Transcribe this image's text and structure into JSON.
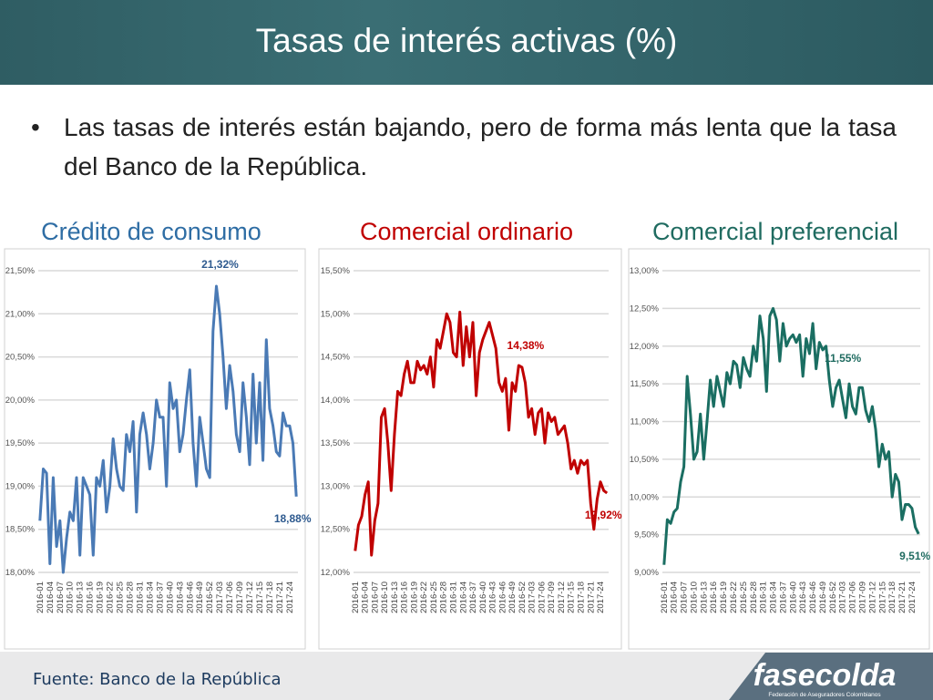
{
  "header": {
    "title": "Tasas de interés activas (%)"
  },
  "bullet": "Las tasas de interés están bajando, pero de forma más lenta que la tasa del Banco de la República.",
  "source": "Fuente: Banco de la República",
  "logo": {
    "name": "fasecolda",
    "tagline": "Federación de Aseguradores Colombianos"
  },
  "chart_data": [
    {
      "type": "line",
      "title": "Crédito de consumo",
      "title_color": "#2e6da4",
      "categories": [
        "2016-01",
        null,
        null,
        "2016-04",
        null,
        null,
        "2016-07",
        null,
        null,
        "2016-10",
        null,
        null,
        "2016-13",
        null,
        null,
        "2016-16",
        null,
        null,
        "2016-19",
        null,
        null,
        "2016-22",
        null,
        null,
        "2016-25",
        null,
        null,
        "2016-28",
        null,
        null,
        "2016-31",
        null,
        null,
        "2016-34",
        null,
        null,
        "2016-37",
        null,
        null,
        "2016-40",
        null,
        null,
        "2016-43",
        null,
        null,
        "2016-46",
        null,
        null,
        "2016-49",
        null,
        null,
        "2016-52",
        null,
        null,
        "2017-03",
        null,
        null,
        "2017-06",
        null,
        null,
        "2017-09",
        null,
        null,
        "2017-12",
        null,
        null,
        "2017-15",
        null,
        null,
        "2017-18",
        null,
        null,
        "2017-21",
        null,
        null,
        "2017-24",
        null,
        null
      ],
      "series": [
        {
          "color": "#4a7ab5",
          "values": [
            18.6,
            19.2,
            19.15,
            18.1,
            19.1,
            18.3,
            18.6,
            18.0,
            18.4,
            18.7,
            18.6,
            19.1,
            18.2,
            19.1,
            19.0,
            18.9,
            18.2,
            19.1,
            19.0,
            19.3,
            18.7,
            19.0,
            19.55,
            19.2,
            19.0,
            18.95,
            19.6,
            19.4,
            19.75,
            18.7,
            19.6,
            19.85,
            19.6,
            19.2,
            19.5,
            20.0,
            19.8,
            19.8,
            19.0,
            20.2,
            19.9,
            20.0,
            19.4,
            19.6,
            20.0,
            20.35,
            19.5,
            19.0,
            19.8,
            19.5,
            19.2,
            19.1,
            20.8,
            21.32,
            21.0,
            20.5,
            19.9,
            20.4,
            20.1,
            19.6,
            19.4,
            20.2,
            19.8,
            19.25,
            20.3,
            19.5,
            20.2,
            19.3,
            20.7,
            19.9,
            19.7,
            19.4,
            19.35,
            19.85,
            19.7,
            19.7,
            19.5,
            18.88
          ],
          "value_labels": [
            null,
            null,
            null,
            null,
            null,
            null,
            null,
            null,
            null,
            null,
            null,
            null,
            null,
            null,
            null,
            null,
            null,
            null,
            null,
            null,
            null,
            null,
            null,
            null,
            null,
            null,
            null,
            null,
            null,
            null,
            null,
            null,
            null,
            null,
            null,
            null,
            null,
            null,
            null,
            null,
            null,
            null,
            null,
            null,
            null,
            null,
            null,
            null,
            null,
            null,
            null,
            null,
            null,
            "21,32%",
            null,
            null,
            null,
            null,
            null,
            null,
            null,
            null,
            null,
            null,
            null,
            null,
            null,
            null,
            null,
            null,
            null,
            null,
            null,
            null,
            null,
            null,
            null,
            "18,88%"
          ],
          "label_color": "#2e5a8f"
        }
      ],
      "ylim": [
        18.0,
        21.5
      ],
      "yticks": [
        {
          "value": 18.0,
          "label": "18,00%"
        },
        {
          "value": 18.5,
          "label": "18,50%"
        },
        {
          "value": 19.0,
          "label": "19,00%"
        },
        {
          "value": 19.5,
          "label": "19,50%"
        },
        {
          "value": 20.0,
          "label": "20,00%"
        },
        {
          "value": 20.5,
          "label": "20,50%"
        },
        {
          "value": 21.0,
          "label": "21,00%"
        },
        {
          "value": 21.5,
          "label": "21,50%"
        }
      ],
      "grid": true
    },
    {
      "type": "line",
      "title": "Comercial ordinario",
      "title_color": "#c00000",
      "categories": [
        "2016-01",
        null,
        null,
        "2016-04",
        null,
        null,
        "2016-07",
        null,
        null,
        "2016-10",
        null,
        null,
        "2016-13",
        null,
        null,
        "2016-16",
        null,
        null,
        "2016-19",
        null,
        null,
        "2016-22",
        null,
        null,
        "2016-25",
        null,
        null,
        "2016-28",
        null,
        null,
        "2016-31",
        null,
        null,
        "2016-34",
        null,
        null,
        "2016-37",
        null,
        null,
        "2016-40",
        null,
        null,
        "2016-43",
        null,
        null,
        "2016-46",
        null,
        null,
        "2016-49",
        null,
        null,
        "2016-52",
        null,
        null,
        "2017-03",
        null,
        null,
        "2017-06",
        null,
        null,
        "2017-09",
        null,
        null,
        "2017-12",
        null,
        null,
        "2017-15",
        null,
        null,
        "2017-18",
        null,
        null,
        "2017-21",
        null,
        null,
        "2017-24",
        null,
        null
      ],
      "series": [
        {
          "color": "#c00000",
          "values": [
            12.25,
            12.55,
            12.65,
            12.9,
            13.05,
            12.2,
            12.6,
            12.8,
            13.8,
            13.9,
            13.5,
            12.95,
            13.6,
            14.1,
            14.05,
            14.3,
            14.45,
            14.2,
            14.2,
            14.45,
            14.35,
            14.4,
            14.3,
            14.5,
            14.15,
            14.7,
            14.6,
            14.8,
            15.0,
            14.9,
            14.55,
            14.5,
            15.02,
            14.4,
            14.85,
            14.5,
            14.9,
            14.05,
            14.55,
            14.7,
            14.8,
            14.9,
            14.75,
            14.6,
            14.2,
            14.1,
            14.25,
            13.65,
            14.2,
            14.1,
            14.4,
            14.38,
            14.2,
            13.8,
            13.9,
            13.6,
            13.85,
            13.9,
            13.5,
            13.85,
            13.75,
            13.8,
            13.6,
            13.65,
            13.7,
            13.5,
            13.2,
            13.3,
            13.15,
            13.3,
            13.25,
            13.3,
            12.8,
            12.5,
            12.85,
            13.05,
            12.95,
            12.92
          ],
          "value_labels": [
            null,
            null,
            null,
            null,
            null,
            null,
            null,
            null,
            null,
            null,
            null,
            null,
            null,
            null,
            null,
            null,
            null,
            null,
            null,
            null,
            null,
            null,
            null,
            null,
            null,
            null,
            null,
            null,
            null,
            null,
            null,
            null,
            null,
            null,
            null,
            null,
            null,
            null,
            null,
            null,
            null,
            null,
            null,
            null,
            null,
            null,
            null,
            null,
            null,
            null,
            null,
            "14,38%",
            null,
            null,
            null,
            null,
            null,
            null,
            null,
            null,
            null,
            null,
            null,
            null,
            null,
            null,
            null,
            null,
            null,
            null,
            null,
            null,
            null,
            null,
            null,
            null,
            null,
            "12,92%"
          ],
          "label_color": "#c00000"
        }
      ],
      "ylim": [
        12.0,
        15.5
      ],
      "yticks": [
        {
          "value": 12.0,
          "label": "12,00%"
        },
        {
          "value": 12.5,
          "label": "12,50%"
        },
        {
          "value": 13.0,
          "label": "13,00%"
        },
        {
          "value": 13.5,
          "label": "13,50%"
        },
        {
          "value": 14.0,
          "label": "14,00%"
        },
        {
          "value": 14.5,
          "label": "14,50%"
        },
        {
          "value": 15.0,
          "label": "15,00%"
        },
        {
          "value": 15.5,
          "label": "15,50%"
        }
      ],
      "grid": true
    },
    {
      "type": "line",
      "title": "Comercial preferencial",
      "title_color": "#1f6b60",
      "categories": [
        "2016-01",
        null,
        null,
        "2016-04",
        null,
        null,
        "2016-07",
        null,
        null,
        "2016-10",
        null,
        null,
        "2016-13",
        null,
        null,
        "2016-16",
        null,
        null,
        "2016-19",
        null,
        null,
        "2016-22",
        null,
        null,
        "2016-25",
        null,
        null,
        "2016-28",
        null,
        null,
        "2016-31",
        null,
        null,
        "2016-34",
        null,
        null,
        "2016-37",
        null,
        null,
        "2016-40",
        null,
        null,
        "2016-43",
        null,
        null,
        "2016-46",
        null,
        null,
        "2016-49",
        null,
        null,
        "2016-52",
        null,
        null,
        "2017-03",
        null,
        null,
        "2017-06",
        null,
        null,
        "2017-09",
        null,
        null,
        "2017-12",
        null,
        null,
        "2017-15",
        null,
        null,
        "2017-18",
        null,
        null,
        "2017-21",
        null,
        null,
        "2017-24",
        null,
        null
      ],
      "series": [
        {
          "color": "#1a6e62",
          "values": [
            9.1,
            9.7,
            9.65,
            9.8,
            9.85,
            10.2,
            10.4,
            11.6,
            11.1,
            10.5,
            10.6,
            11.1,
            10.5,
            11.0,
            11.55,
            11.2,
            11.6,
            11.4,
            11.2,
            11.65,
            11.5,
            11.8,
            11.75,
            11.45,
            11.85,
            11.7,
            11.6,
            12.0,
            11.8,
            12.4,
            12.1,
            11.4,
            12.4,
            12.5,
            12.35,
            11.8,
            12.3,
            12.0,
            12.1,
            12.15,
            12.05,
            12.15,
            11.6,
            12.1,
            11.9,
            12.3,
            11.7,
            12.05,
            11.95,
            12.0,
            11.55,
            11.2,
            11.45,
            11.55,
            11.3,
            11.05,
            11.5,
            11.2,
            11.1,
            11.45,
            11.45,
            11.15,
            11.0,
            11.2,
            10.9,
            10.4,
            10.7,
            10.5,
            10.6,
            10.0,
            10.3,
            10.2,
            9.7,
            9.9,
            9.9,
            9.85,
            9.6,
            9.51
          ],
          "value_labels": [
            null,
            null,
            null,
            null,
            null,
            null,
            null,
            null,
            null,
            null,
            null,
            null,
            null,
            null,
            null,
            null,
            null,
            null,
            null,
            null,
            null,
            null,
            null,
            null,
            null,
            null,
            null,
            null,
            null,
            null,
            null,
            null,
            null,
            null,
            null,
            null,
            null,
            null,
            null,
            null,
            null,
            null,
            null,
            null,
            null,
            null,
            null,
            null,
            null,
            null,
            null,
            null,
            null,
            "11,55%",
            null,
            null,
            null,
            null,
            null,
            null,
            null,
            null,
            null,
            null,
            null,
            null,
            null,
            null,
            null,
            null,
            null,
            null,
            null,
            null,
            null,
            null,
            null,
            "9,51%"
          ],
          "label_color": "#1f6b60"
        }
      ],
      "ylim": [
        9.0,
        13.0
      ],
      "yticks": [
        {
          "value": 9.0,
          "label": "9,00%"
        },
        {
          "value": 9.5,
          "label": "9,50%"
        },
        {
          "value": 10.0,
          "label": "10,00%"
        },
        {
          "value": 10.5,
          "label": "10,50%"
        },
        {
          "value": 11.0,
          "label": "11,00%"
        },
        {
          "value": 11.5,
          "label": "11,50%"
        },
        {
          "value": 12.0,
          "label": "12,00%"
        },
        {
          "value": 12.5,
          "label": "12,50%"
        },
        {
          "value": 13.0,
          "label": "13,00%"
        }
      ],
      "grid": true
    }
  ]
}
